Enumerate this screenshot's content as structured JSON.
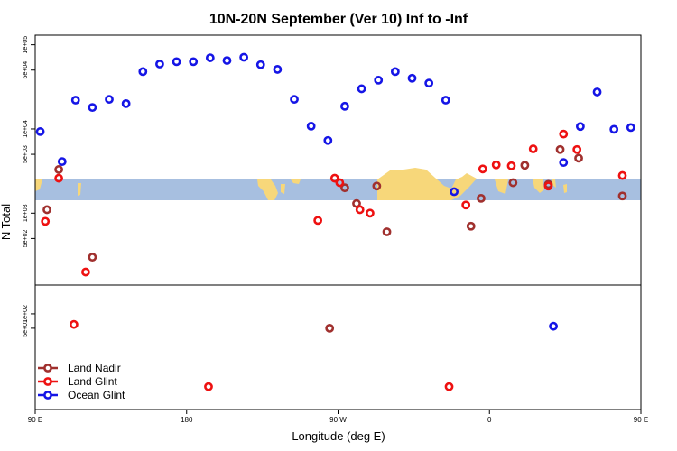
{
  "chart_data": {
    "type": "scatter",
    "title": "10N-20N September (Ver 10)   Inf to -Inf",
    "xlabel": "Longitude (deg E)",
    "ylabel": "N Total",
    "x_range": [
      90,
      450
    ],
    "x_ticks": [
      {
        "value": 90,
        "label": "90 E"
      },
      {
        "value": 180,
        "label": "180"
      },
      {
        "value": 270,
        "label": "90 W"
      },
      {
        "value": 360,
        "label": "0"
      },
      {
        "value": 450,
        "label": "90 E"
      },
      {
        "value": 540,
        "label": "180"
      }
    ],
    "upper_panel": {
      "scale": "log",
      "ylim": [
        140,
        130000
      ],
      "y_ticks": [
        {
          "value": 500,
          "label": "5e+02"
        },
        {
          "value": 1000,
          "label": "1e+03"
        },
        {
          "value": 5000,
          "label": "5e+03"
        },
        {
          "value": 10000,
          "label": "1e+04"
        },
        {
          "value": 50000,
          "label": "5e+04"
        },
        {
          "value": 100000,
          "label": "1e+05"
        }
      ],
      "map_band": {
        "land_color": "#f7d77a",
        "ocean_color": "#a7bfe0"
      }
    },
    "lower_panel": {
      "scale": "log",
      "ylim": [
        1,
        400
      ],
      "y_ticks": [
        {
          "value": 50,
          "label": "5e+01"
        },
        {
          "value": 100,
          "label": "1e+02"
        }
      ]
    },
    "series": [
      {
        "name": "Land Nadir",
        "color": "#a0302e",
        "points": [
          {
            "lon": 97,
            "value": 1100
          },
          {
            "lon": 104,
            "value": 3300
          },
          {
            "lon": 124,
            "value": 300
          },
          {
            "lon": 265,
            "value": 50
          },
          {
            "lon": 274,
            "value": 2000
          },
          {
            "lon": 281,
            "value": 1300
          },
          {
            "lon": 293,
            "value": 2100
          },
          {
            "lon": 299,
            "value": 600
          },
          {
            "lon": 349,
            "value": 700
          },
          {
            "lon": 355,
            "value": 1500
          },
          {
            "lon": 374,
            "value": 2300
          },
          {
            "lon": 381,
            "value": 3700
          },
          {
            "lon": 395,
            "value": 2200
          },
          {
            "lon": 402,
            "value": 5700
          },
          {
            "lon": 413,
            "value": 4500
          },
          {
            "lon": 439,
            "value": 1600
          },
          {
            "lon": 453,
            "value": 650
          },
          {
            "lon": 459,
            "value": 3300
          },
          {
            "lon": 470,
            "value": 1100
          },
          {
            "lon": 491,
            "value": 300
          }
        ]
      },
      {
        "name": "Land Glint",
        "color": "#ee1111",
        "points": [
          {
            "lon": 96,
            "value": 800
          },
          {
            "lon": 104,
            "value": 2600
          },
          {
            "lon": 113,
            "value": 60
          },
          {
            "lon": 120,
            "value": 200
          },
          {
            "lon": 193,
            "value": 3
          },
          {
            "lon": 258,
            "value": 820
          },
          {
            "lon": 268,
            "value": 2600
          },
          {
            "lon": 271,
            "value": 2300
          },
          {
            "lon": 283,
            "value": 1100
          },
          {
            "lon": 289,
            "value": 1000
          },
          {
            "lon": 336,
            "value": 3
          },
          {
            "lon": 346,
            "value": 1250
          },
          {
            "lon": 356,
            "value": 3350
          },
          {
            "lon": 364,
            "value": 3750
          },
          {
            "lon": 373,
            "value": 3650
          },
          {
            "lon": 386,
            "value": 5800
          },
          {
            "lon": 395,
            "value": 2100
          },
          {
            "lon": 404,
            "value": 8700
          },
          {
            "lon": 412,
            "value": 5700
          },
          {
            "lon": 439,
            "value": 2800
          },
          {
            "lon": 456,
            "value": 400
          },
          {
            "lon": 464,
            "value": 3000
          },
          {
            "lon": 470,
            "value": 800
          },
          {
            "lon": 485,
            "value": 60
          },
          {
            "lon": 491,
            "value": 200
          }
        ]
      },
      {
        "name": "Ocean Glint",
        "color": "#1515e6",
        "points": [
          {
            "lon": 93,
            "value": 9300
          },
          {
            "lon": 106,
            "value": 4100
          },
          {
            "lon": 114,
            "value": 22000
          },
          {
            "lon": 124,
            "value": 18000
          },
          {
            "lon": 134,
            "value": 22500
          },
          {
            "lon": 144,
            "value": 20000
          },
          {
            "lon": 154,
            "value": 48000
          },
          {
            "lon": 164,
            "value": 59000
          },
          {
            "lon": 174,
            "value": 63000
          },
          {
            "lon": 184,
            "value": 63000
          },
          {
            "lon": 194,
            "value": 70000
          },
          {
            "lon": 204,
            "value": 65000
          },
          {
            "lon": 214,
            "value": 71000
          },
          {
            "lon": 224,
            "value": 58000
          },
          {
            "lon": 234,
            "value": 51000
          },
          {
            "lon": 244,
            "value": 22500
          },
          {
            "lon": 254,
            "value": 10800
          },
          {
            "lon": 264,
            "value": 7300
          },
          {
            "lon": 274,
            "value": 18600
          },
          {
            "lon": 284,
            "value": 30000
          },
          {
            "lon": 294,
            "value": 38000
          },
          {
            "lon": 304,
            "value": 48000
          },
          {
            "lon": 314,
            "value": 40000
          },
          {
            "lon": 324,
            "value": 35000
          },
          {
            "lon": 334,
            "value": 22000
          },
          {
            "lon": 339,
            "value": 1800
          },
          {
            "lon": 398,
            "value": 55
          },
          {
            "lon": 404,
            "value": 4000
          },
          {
            "lon": 414,
            "value": 10700
          },
          {
            "lon": 424,
            "value": 27500
          },
          {
            "lon": 434,
            "value": 9900
          },
          {
            "lon": 444,
            "value": 10400
          },
          {
            "lon": 454,
            "value": 8800
          },
          {
            "lon": 464,
            "value": 4200
          },
          {
            "lon": 474,
            "value": 22000
          },
          {
            "lon": 484,
            "value": 18000
          },
          {
            "lon": 494,
            "value": 23000
          },
          {
            "lon": 504,
            "value": 20000
          },
          {
            "lon": 514,
            "value": 49000
          },
          {
            "lon": 524,
            "value": 57000
          },
          {
            "lon": 534,
            "value": 62000
          }
        ]
      }
    ],
    "legend": {
      "position": "bottom-left",
      "entries": [
        "Land Nadir",
        "Land Glint",
        "Ocean Glint"
      ]
    }
  }
}
